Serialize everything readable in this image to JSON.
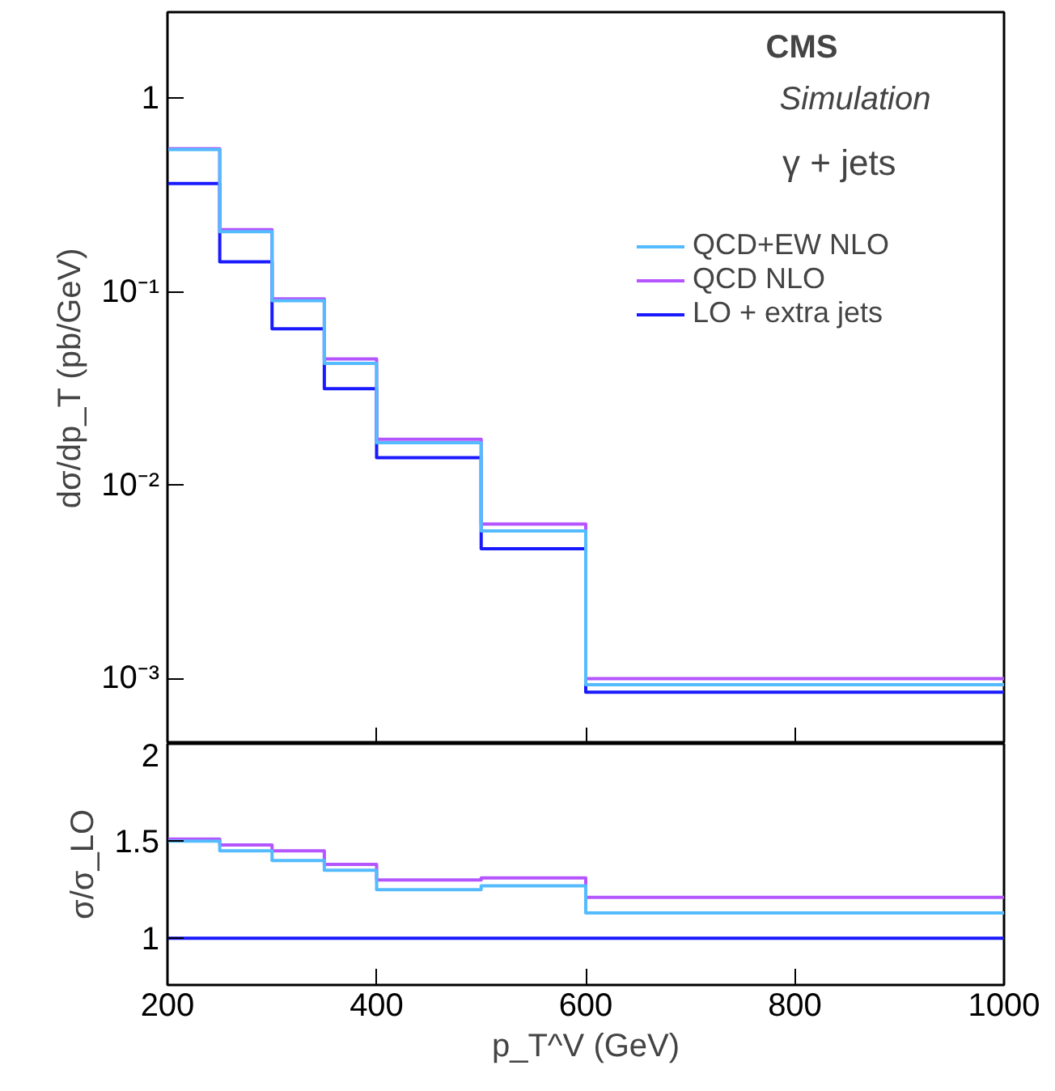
{
  "chart_data": [
    {
      "type": "histogram",
      "ylabel": "dσ/dp_T (pb/GeV)",
      "annotations": [
        "CMS",
        "Simulation",
        "γ + jets"
      ],
      "bins": [
        200,
        250,
        300,
        350,
        400,
        500,
        600,
        1000
      ],
      "xlim": [
        200,
        1000
      ],
      "xticks": [
        200,
        400,
        600,
        800,
        1000
      ],
      "ylim": [
        0.00046,
        2.8
      ],
      "yticks": [
        {
          "value": 0.001,
          "label": "10⁻³"
        },
        {
          "value": 0.01,
          "label": "10⁻²"
        },
        {
          "value": 0.1,
          "label": "10⁻¹"
        },
        1
      ],
      "log": "y",
      "tick_labels": "y",
      "legend": "top right",
      "series": [
        {
          "name": "QCD+EW NLO",
          "color": "#55bbff",
          "values": [
            0.545,
            0.205,
            0.09,
            0.0427,
            0.0166,
            0.0058,
            0.00093
          ]
        },
        {
          "name": "QCD NLO",
          "color": "#b455ff",
          "values": [
            0.55,
            0.21,
            0.092,
            0.045,
            0.0173,
            0.0063,
            0.001
          ]
        },
        {
          "name": "LO + extra jets",
          "color": "#1a1aff",
          "values": [
            0.364,
            0.143,
            0.0645,
            0.0316,
            0.0139,
            0.0047,
            0.00085
          ]
        }
      ]
    },
    {
      "type": "histogram",
      "xlabel": "p_T^V (GeV)",
      "ylabel": "σ/σ_LO",
      "bins": [
        200,
        250,
        300,
        350,
        400,
        500,
        600,
        1000
      ],
      "xlim": [
        200,
        1000
      ],
      "xticks": [
        200,
        400,
        600,
        800,
        1000
      ],
      "ylim": [
        0.76,
        2
      ],
      "yticks": [
        1,
        1.5,
        2
      ],
      "series": [
        {
          "color": "#55bbff",
          "values": [
            1.5,
            1.45,
            1.4,
            1.35,
            1.25,
            1.27,
            1.13
          ]
        },
        {
          "color": "#b455ff",
          "values": [
            1.51,
            1.48,
            1.45,
            1.38,
            1.3,
            1.31,
            1.21
          ]
        },
        {
          "color": "#1a1aff",
          "values": [
            1,
            1,
            1,
            1,
            1,
            1,
            1
          ]
        }
      ]
    }
  ]
}
